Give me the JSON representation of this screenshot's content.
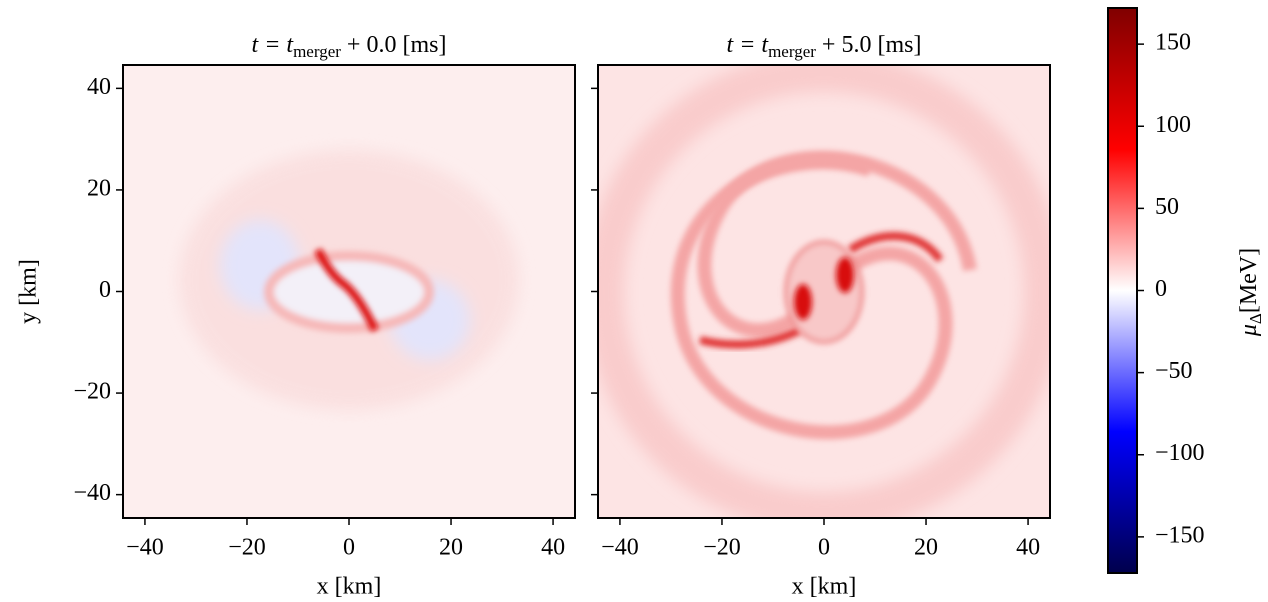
{
  "chart_data": [
    {
      "type": "heatmap",
      "title": "t = t",
      "title_sub": "merger",
      "title_rest": " + 0.0 [ms]",
      "xlabel": "x [km]",
      "ylabel": "y [km]",
      "xlim": [
        -44.3,
        44.3
      ],
      "ylim": [
        -44.6,
        44.6
      ],
      "xticks": [
        {
          "value": -40,
          "label": "−40"
        },
        {
          "value": -20,
          "label": "−20"
        },
        0,
        20,
        40
      ],
      "yticks": [
        {
          "value": -40,
          "label": "−40"
        },
        {
          "value": -20,
          "label": "−20"
        },
        0,
        20,
        40
      ],
      "show_ytick_labels": true
    },
    {
      "type": "heatmap",
      "title": "t = t",
      "title_sub": "merger",
      "title_rest": " + 5.0 [ms]",
      "xlabel": "x [km]",
      "xlim": [
        -44.3,
        44.3
      ],
      "ylim": [
        -44.6,
        44.6
      ],
      "xticks": [
        {
          "value": -40,
          "label": "−40"
        },
        {
          "value": -20,
          "label": "−20"
        },
        0,
        20,
        40
      ],
      "yticks": [
        -40,
        -20,
        0,
        20,
        40
      ],
      "show_ytick_labels": false
    }
  ],
  "colorbar": {
    "label": "μ",
    "label_sub": "Δ",
    "label_unit": "[MeV]",
    "lim": [
      -172,
      172
    ],
    "ticks": [
      {
        "value": -150,
        "label": "−150"
      },
      {
        "value": -100,
        "label": "−100"
      },
      {
        "value": -50,
        "label": "−50"
      },
      0,
      50,
      100,
      150
    ],
    "colors": [
      "#00004c",
      "#0000ff",
      "#ffffff",
      "#ff0000",
      "#800000"
    ]
  }
}
